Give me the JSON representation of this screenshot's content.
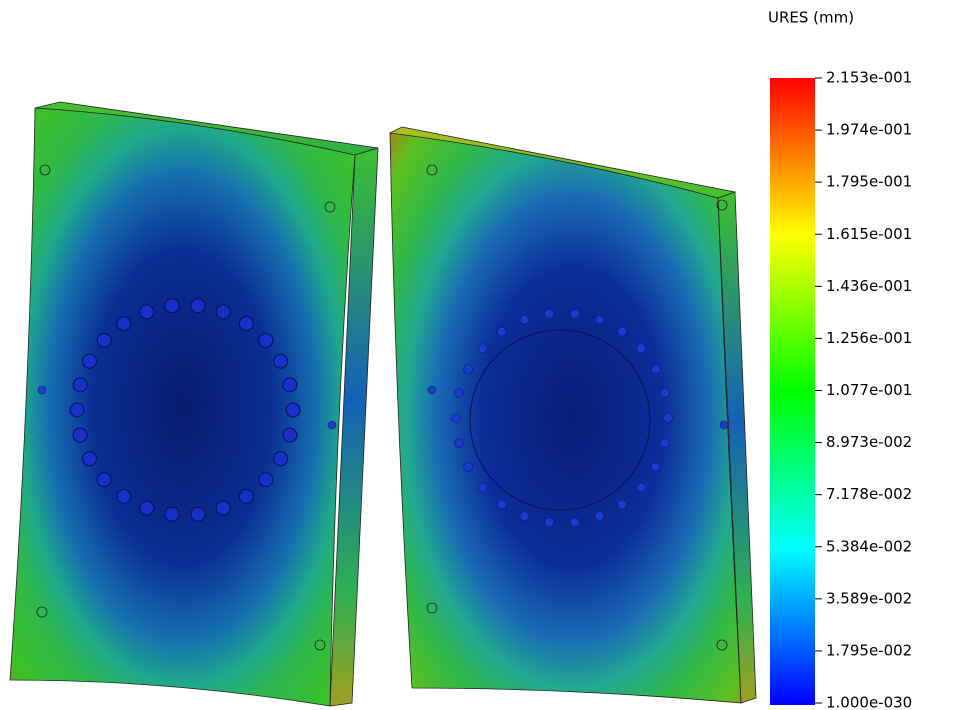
{
  "legend": {
    "title": "URES (mm)",
    "labels": [
      "2.153e-001",
      "1.974e-001",
      "1.795e-001",
      "1.615e-001",
      "1.436e-001",
      "1.256e-001",
      "1.077e-001",
      "8.973e-002",
      "7.178e-002",
      "5.384e-002",
      "3.589e-002",
      "1.795e-002",
      "1.000e-030"
    ]
  }
}
